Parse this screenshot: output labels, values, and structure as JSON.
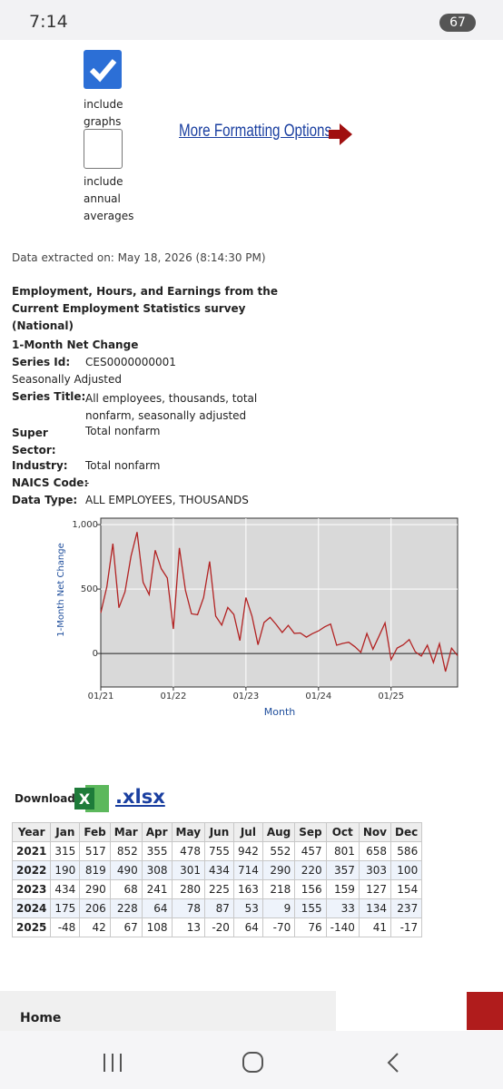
{
  "status_bar": {
    "time": "7:14",
    "battery": "67"
  },
  "options": {
    "include_graphs": "include graphs",
    "include_annual": "include annual averages",
    "more_link": "More Formatting Options"
  },
  "extracted": "Data extracted on: May 18, 2026 (8:14:30 PM)",
  "heading": "Employment, Hours, and Earnings from the Current Employment Statistics survey (National)",
  "subheading": "1-Month Net Change",
  "seasonal": "Seasonally Adjusted",
  "fields": [
    {
      "label": "Series Id:",
      "value": "CES0000000001"
    },
    {
      "label": "Series Title:",
      "value": "All employees, thousands, total nonfarm, seasonally adjusted"
    },
    {
      "label": "Super Sector:",
      "value": "Total nonfarm"
    },
    {
      "label": "Industry:",
      "value": "Total nonfarm"
    },
    {
      "label": "NAICS Code:",
      "value": "-"
    },
    {
      "label": "Data Type:",
      "value": "ALL EMPLOYEES, THOUSANDS"
    }
  ],
  "chart_data": {
    "type": "line",
    "y_label": "1-Month Net Change",
    "x_label": "Month",
    "categories": [
      "01/21",
      null,
      null,
      null,
      null,
      null,
      null,
      null,
      null,
      null,
      null,
      null,
      "01/22",
      null,
      null,
      null,
      null,
      null,
      null,
      null,
      null,
      null,
      null,
      null,
      "01/23",
      null,
      null,
      null,
      null,
      null,
      null,
      null,
      null,
      null,
      null,
      null,
      "01/24",
      null,
      null,
      null,
      null,
      null,
      null,
      null,
      null,
      null,
      null,
      null,
      "01/25",
      null,
      null,
      null,
      null,
      null,
      null,
      null,
      null,
      null,
      null,
      null
    ],
    "series": [
      {
        "name": "1-Month Net Change",
        "color": "#b22222",
        "values": [
          315,
          517,
          852,
          355,
          478,
          755,
          942,
          552,
          457,
          801,
          658,
          586,
          190,
          819,
          490,
          308,
          301,
          434,
          714,
          290,
          220,
          357,
          303,
          100,
          434,
          290,
          68,
          241,
          280,
          225,
          163,
          218,
          156,
          159,
          127,
          154,
          175,
          206,
          228,
          64,
          78,
          87,
          53,
          9,
          155,
          33,
          134,
          237,
          -48,
          42,
          67,
          108,
          13,
          -20,
          64,
          -70,
          76,
          -140,
          41,
          -17
        ]
      }
    ],
    "ylim": [
      -260,
      1050
    ],
    "yticks": [
      0,
      500,
      {
        "value": 1000,
        "label": "1,000"
      }
    ],
    "grid": true
  },
  "download": {
    "label": "Download:",
    "file": ".xlsx"
  },
  "table": {
    "header": [
      "Year",
      "Jan",
      "Feb",
      "Mar",
      "Apr",
      "May",
      "Jun",
      "Jul",
      "Aug",
      "Sep",
      "Oct",
      "Nov",
      "Dec"
    ],
    "rows": [
      [
        "2021",
        315,
        517,
        852,
        355,
        478,
        755,
        942,
        552,
        457,
        801,
        658,
        586
      ],
      [
        "2022",
        190,
        819,
        490,
        308,
        301,
        434,
        714,
        290,
        220,
        357,
        303,
        100
      ],
      [
        "2023",
        434,
        290,
        68,
        241,
        280,
        225,
        163,
        218,
        156,
        159,
        127,
        154
      ],
      [
        "2024",
        175,
        206,
        228,
        64,
        78,
        87,
        53,
        9,
        155,
        33,
        134,
        237
      ],
      [
        "2025",
        -48,
        42,
        67,
        108,
        13,
        -20,
        64,
        -70,
        76,
        -140,
        41,
        -17
      ]
    ]
  },
  "footer": {
    "home": "Home"
  }
}
